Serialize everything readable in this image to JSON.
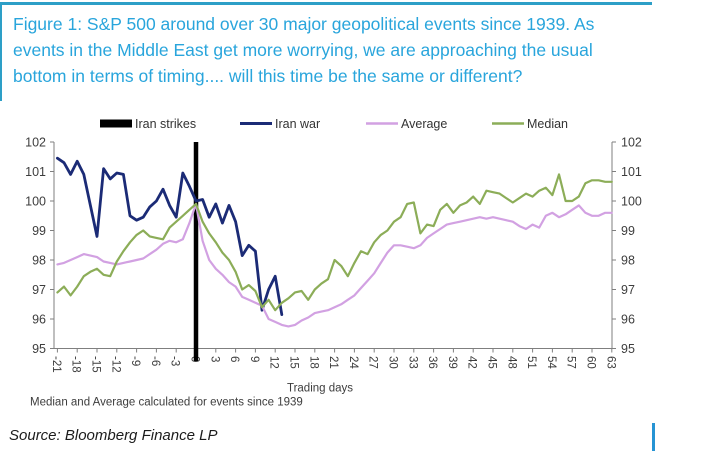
{
  "title": {
    "text": "Figure 1: S&P 500 around over 30 major geopolitical events since 1939. As events in the Middle East get more worrying, we are approaching the usual bottom in terms of timing.... will this time be the same or different?"
  },
  "footnote": "Median and Average calculated for events since 1939",
  "source": "Source: Bloomberg Finance LP",
  "colors": {
    "title_blue": "#29a5dc",
    "border_blue": "#2d9fc7",
    "accent_blue": "#2694d4",
    "axis_text": "#3d3d3d",
    "event_black": "#000000",
    "iran_war_navy": "#1b2b76",
    "average_violet": "#d2a1e2",
    "median_green": "#8cad58"
  },
  "legend": [
    {
      "label": "Iran strikes",
      "type": "bar",
      "color": "#000000"
    },
    {
      "label": "Iran war",
      "type": "line",
      "color": "#1b2b76"
    },
    {
      "label": "Average",
      "type": "line",
      "color": "#d2a1e2"
    },
    {
      "label": "Median",
      "type": "line",
      "color": "#8cad58"
    }
  ],
  "chart_data": {
    "type": "line",
    "xlabel": "Trading days",
    "ylim": [
      95,
      102
    ],
    "y_ticks": [
      95,
      96,
      97,
      98,
      99,
      100,
      101,
      102
    ],
    "x_ticks": [
      -21,
      -18,
      -15,
      -12,
      -9,
      -6,
      -3,
      0,
      3,
      6,
      9,
      12,
      15,
      18,
      21,
      24,
      27,
      30,
      33,
      36,
      39,
      42,
      45,
      48,
      51,
      54,
      57,
      60,
      63
    ],
    "event_marker": {
      "x": 0,
      "label": "Iran strikes"
    },
    "series": [
      {
        "name": "Iran war",
        "color": "#1b2b76",
        "x_start": -21,
        "step": 1,
        "values": [
          101.45,
          101.3,
          100.9,
          101.35,
          100.9,
          99.85,
          98.8,
          101.1,
          100.75,
          100.95,
          100.9,
          99.5,
          99.35,
          99.45,
          99.8,
          100.0,
          100.4,
          99.85,
          99.45,
          100.95,
          100.5,
          100.0,
          100.05,
          99.45,
          99.9,
          99.25,
          99.85,
          99.3,
          98.15,
          98.5,
          98.3,
          96.3,
          97.0,
          97.45,
          96.15
        ]
      },
      {
        "name": "Average",
        "color": "#d2a1e2",
        "x_start": -21,
        "step": 1,
        "values": [
          97.85,
          97.9,
          98.0,
          98.1,
          98.2,
          98.15,
          98.1,
          97.95,
          97.9,
          97.85,
          97.9,
          97.95,
          98.0,
          98.05,
          98.2,
          98.35,
          98.55,
          98.65,
          98.6,
          98.7,
          99.25,
          99.9,
          98.65,
          98.0,
          97.7,
          97.5,
          97.25,
          97.1,
          96.75,
          96.65,
          96.55,
          96.45,
          96.0,
          95.9,
          95.8,
          95.75,
          95.8,
          95.95,
          96.05,
          96.2,
          96.25,
          96.3,
          96.4,
          96.5,
          96.65,
          96.8,
          97.05,
          97.3,
          97.55,
          97.9,
          98.25,
          98.5,
          98.5,
          98.45,
          98.4,
          98.5,
          98.75,
          98.9,
          99.05,
          99.2,
          99.25,
          99.3,
          99.35,
          99.4,
          99.45,
          99.4,
          99.45,
          99.4,
          99.35,
          99.3,
          99.15,
          99.05,
          99.2,
          99.1,
          99.5,
          99.6,
          99.45,
          99.55,
          99.7,
          99.85,
          99.6,
          99.5,
          99.5,
          99.6,
          99.6
        ]
      },
      {
        "name": "Median",
        "color": "#8cad58",
        "x_start": -21,
        "step": 1,
        "values": [
          96.9,
          97.1,
          96.8,
          97.1,
          97.45,
          97.6,
          97.7,
          97.5,
          97.45,
          97.95,
          98.3,
          98.6,
          98.85,
          99.0,
          98.8,
          98.75,
          98.7,
          99.1,
          99.3,
          99.5,
          99.7,
          99.9,
          99.3,
          98.9,
          98.6,
          98.25,
          98.0,
          97.6,
          97.0,
          97.15,
          96.95,
          96.4,
          96.65,
          96.3,
          96.55,
          96.7,
          96.9,
          96.95,
          96.65,
          97.0,
          97.2,
          97.35,
          98.0,
          97.8,
          97.45,
          97.9,
          98.3,
          98.2,
          98.6,
          98.85,
          99.0,
          99.3,
          99.45,
          99.9,
          99.95,
          98.9,
          99.2,
          99.15,
          99.7,
          99.9,
          99.6,
          99.85,
          99.95,
          100.15,
          99.9,
          100.35,
          100.3,
          100.25,
          100.1,
          99.95,
          100.1,
          100.25,
          100.15,
          100.35,
          100.45,
          100.2,
          100.9,
          100.0,
          100.0,
          100.15,
          100.6,
          100.7,
          100.7,
          100.65,
          100.65
        ]
      }
    ]
  }
}
